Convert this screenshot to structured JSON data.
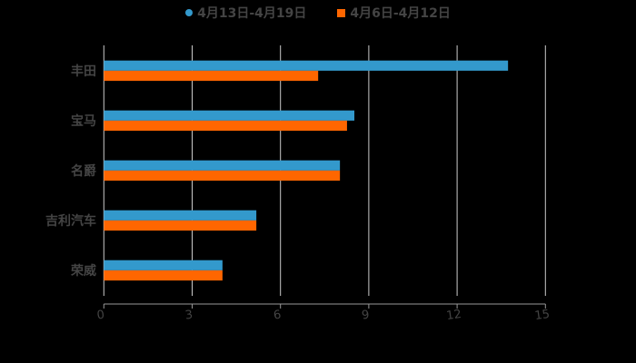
{
  "chart_data": {
    "type": "bar",
    "orientation": "horizontal",
    "title": "",
    "xlabel": "",
    "ylabel": "",
    "categories": [
      "丰田",
      "宝马",
      "名爵",
      "吉利汽车",
      "荣威"
    ],
    "series": [
      {
        "name": "4月13日-4月19日",
        "color": "#3399cc",
        "marker": "circle",
        "values": [
          13.73,
          8.51,
          8.02,
          5.18,
          4.03
        ]
      },
      {
        "name": "4月6日-4月12日",
        "color": "#ff6600",
        "marker": "square",
        "values": [
          7.28,
          8.26,
          8.02,
          5.18,
          4.03
        ]
      }
    ],
    "xlim": [
      0,
      15
    ],
    "xticks": [
      0,
      3,
      6,
      9,
      12,
      15
    ],
    "grid": {
      "vertical": true,
      "horizontal": false,
      "color": "#cccccc"
    },
    "legend_position": "top",
    "background": "#000000",
    "label_color": "#444444"
  }
}
